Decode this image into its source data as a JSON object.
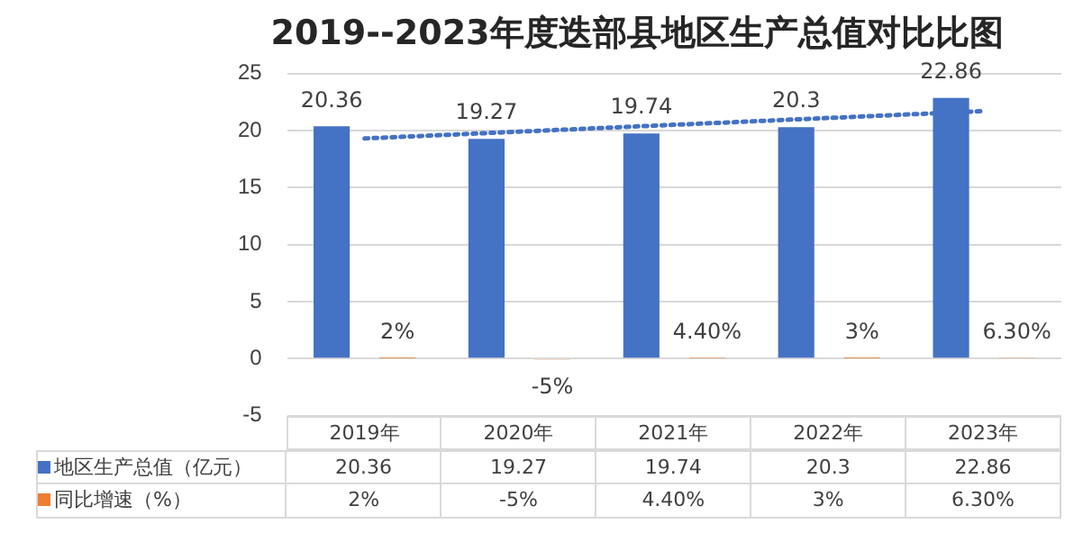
{
  "chart_data": {
    "type": "bar",
    "title": "2019--2023年度迭部县地区生产总值对比比图",
    "categories": [
      "2019年",
      "2020年",
      "2021年",
      "2022年",
      "2023年"
    ],
    "series": [
      {
        "name": "地区生产总值（亿元）",
        "color": "#4472c4",
        "values": [
          20.36,
          19.27,
          19.74,
          20.3,
          22.86
        ],
        "value_labels": [
          "20.36",
          "19.27",
          "19.74",
          "20.3",
          "22.86"
        ]
      },
      {
        "name": "同比增速（%）",
        "color": "#ed7d31",
        "values": [
          0.02,
          -0.05,
          0.044,
          0.03,
          0.063
        ],
        "value_labels": [
          "2%",
          "-5%",
          "4.40%",
          "3%",
          "6.30%"
        ]
      },
      {
        "type": "line",
        "color": "#4472c4",
        "line_style": "dotted",
        "x": [
          "2019年",
          "2020年",
          "2021年",
          "2022年",
          "2023年"
        ],
        "values": [
          19.3,
          19.9,
          20.5,
          21.1,
          21.7
        ]
      }
    ],
    "ylim": [
      -5,
      25
    ],
    "yticks": [
      -5,
      0,
      5,
      10,
      15,
      20,
      25
    ],
    "grid": "y",
    "legend": "bottom"
  }
}
